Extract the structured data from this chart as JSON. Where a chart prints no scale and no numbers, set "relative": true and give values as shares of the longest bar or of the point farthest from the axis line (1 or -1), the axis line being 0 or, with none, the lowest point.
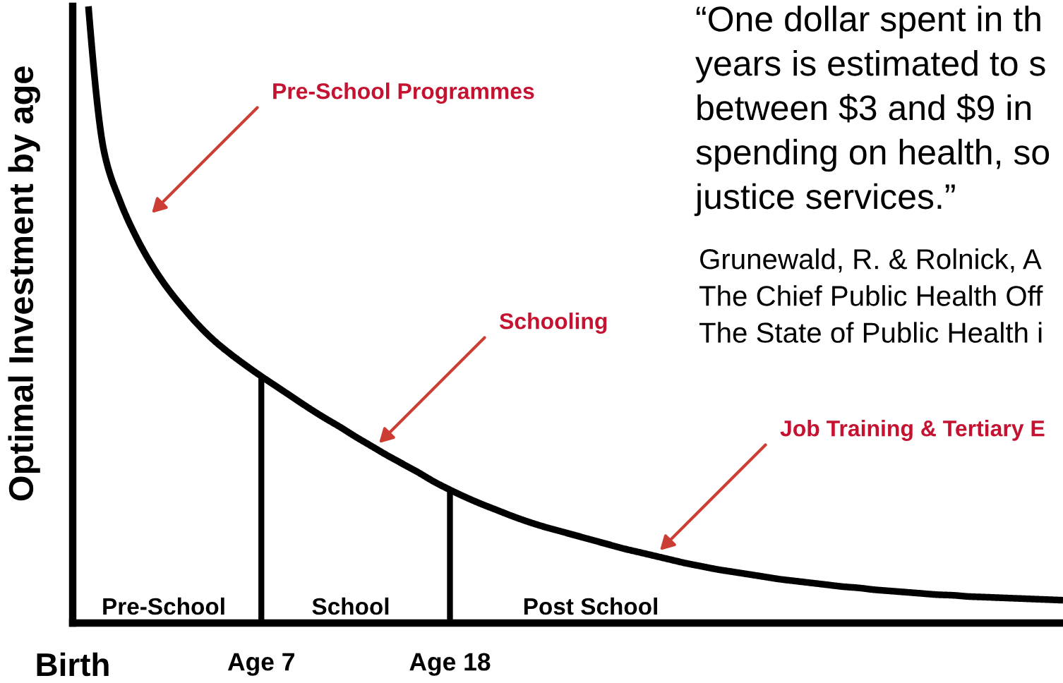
{
  "chart_data": {
    "type": "line",
    "relative": true,
    "ylabel": "Optimal Investment by age",
    "categories": [
      "Birth",
      null,
      null,
      null,
      null,
      null,
      null,
      null,
      null,
      null,
      null,
      null,
      "Age 7",
      null,
      null,
      null,
      null,
      null,
      null,
      null,
      null,
      null,
      null,
      null,
      "Age 18",
      null,
      null,
      null,
      null,
      null,
      null,
      null,
      null,
      null,
      null,
      null,
      null,
      null,
      null,
      null,
      null,
      null,
      null,
      null,
      null,
      null,
      null,
      null,
      null,
      null,
      null,
      null,
      null,
      null,
      null,
      null,
      null,
      null,
      null,
      null,
      null,
      null,
      null,
      null
    ],
    "series": [
      {
        "color": "#000000",
        "values": [
          null,
          1.0,
          0.764,
          0.685,
          0.628,
          0.582,
          0.544,
          0.512,
          0.483,
          0.458,
          0.437,
          0.418,
          0.4,
          0.383,
          0.366,
          0.349,
          0.333,
          0.318,
          0.302,
          0.287,
          0.272,
          0.258,
          0.244,
          0.229,
          0.216,
          0.204,
          0.193,
          0.183,
          0.173,
          0.164,
          0.156,
          0.149,
          0.142,
          0.135,
          0.128,
          0.121,
          0.115,
          0.109,
          0.103,
          0.097,
          0.092,
          0.087,
          0.083,
          0.079,
          0.075,
          0.071,
          0.068,
          0.065,
          0.062,
          0.059,
          0.057,
          0.054,
          0.052,
          0.05,
          0.048,
          0.046,
          0.045,
          0.043,
          0.042,
          0.041,
          0.04,
          0.039,
          0.038,
          0.037
        ]
      }
    ],
    "ref_lines": [
      {
        "axis": "x",
        "value": "Age 7"
      },
      {
        "axis": "x",
        "value": "Age 18"
      }
    ],
    "annotations": [
      "Pre-School Programmes",
      "Schooling",
      "Job Training & Tertiary E",
      "“One dollar spent in th\nyears is estimated to s\nbetween $3 and $9 in\nspending on health, so\njustice services.”",
      "Grunewald, R. & Rolnick, A\nThe Chief Public Health Off\nThe State of Public Health i",
      "Pre-School",
      "School",
      "Post School"
    ],
    "grid": false
  }
}
